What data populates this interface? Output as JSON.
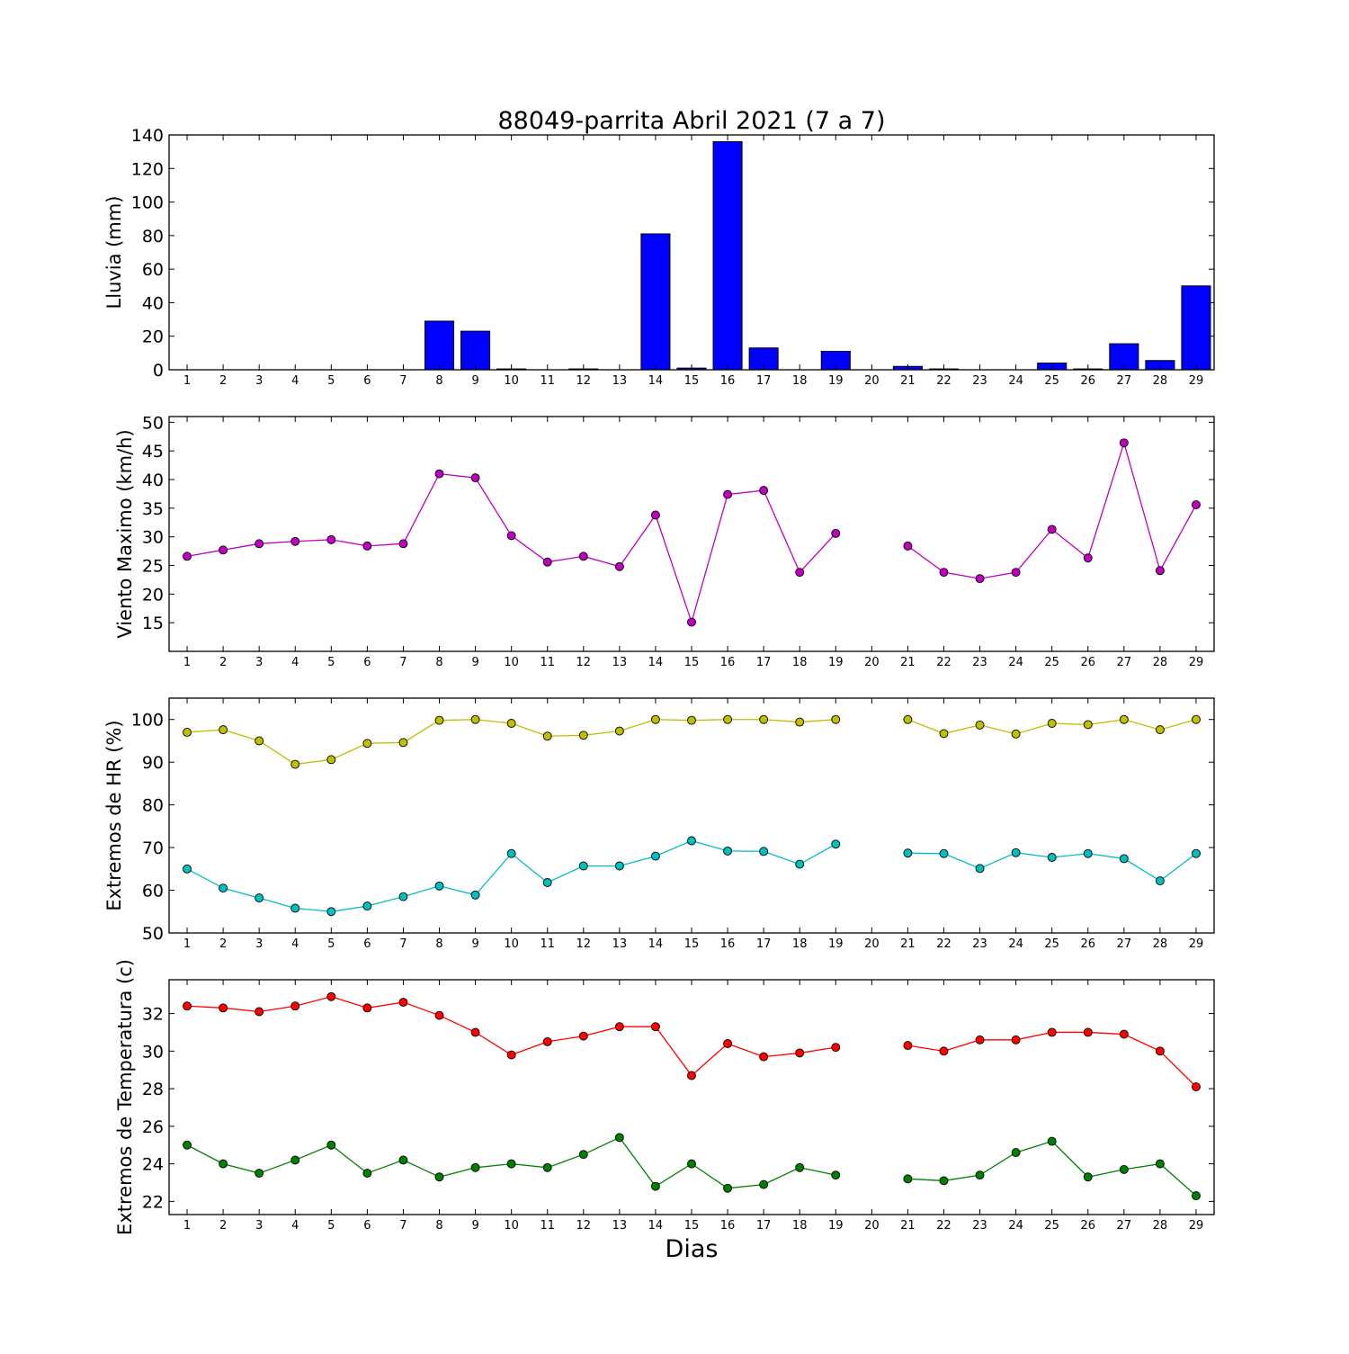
{
  "chart_data": {
    "title": "88049-parrita Abril 2021  (7 a 7)",
    "xlabel": "Dias",
    "x": [
      1,
      2,
      3,
      4,
      5,
      6,
      7,
      8,
      9,
      10,
      11,
      12,
      13,
      14,
      15,
      16,
      17,
      18,
      19,
      20,
      21,
      22,
      23,
      24,
      25,
      26,
      27,
      28,
      29
    ],
    "panels": [
      {
        "id": "lluvia",
        "type": "bar",
        "ylabel": "Lluvia (mm)",
        "ylim": [
          0,
          140
        ],
        "yticks": [
          0,
          20,
          40,
          60,
          80,
          100,
          120,
          140
        ],
        "series": [
          {
            "color": "#0000ff",
            "values": [
              0,
              0,
              0,
              0,
              0,
              0,
              0,
              29,
              23,
              0.5,
              0,
              0.5,
              0,
              81,
              1,
              136,
              13,
              0,
              11,
              0,
              2,
              0.5,
              0,
              0,
              4,
              0.5,
              15.5,
              5.5,
              50
            ]
          }
        ]
      },
      {
        "id": "viento",
        "type": "line",
        "ylabel": "Viento Maximo (km/h)",
        "ylim": [
          10,
          51
        ],
        "yticks": [
          15,
          20,
          25,
          30,
          35,
          40,
          45,
          50
        ],
        "series": [
          {
            "color": "#bf00bf",
            "values": [
              26.6,
              27.7,
              28.8,
              29.2,
              29.5,
              28.4,
              28.8,
              41,
              40.3,
              30.2,
              25.6,
              26.6,
              24.8,
              33.8,
              15.1,
              37.4,
              38.1,
              23.8,
              30.6,
              null,
              28.4,
              23.8,
              22.7,
              23.8,
              31.3,
              26.3,
              46.4,
              24.1,
              35.6
            ]
          }
        ]
      },
      {
        "id": "hr",
        "type": "line",
        "ylabel": "Extremos de HR (%)",
        "ylim": [
          50,
          105
        ],
        "yticks": [
          50,
          60,
          70,
          80,
          90,
          100
        ],
        "series": [
          {
            "color": "#bfbf00",
            "values": [
              97,
              97.6,
              95,
              89.5,
              90.6,
              94.4,
              94.6,
              99.8,
              100,
              99.1,
              96.1,
              96.3,
              97.3,
              100,
              99.8,
              100,
              100,
              99.4,
              100,
              null,
              100,
              96.7,
              98.7,
              96.6,
              99.1,
              98.8,
              100,
              97.6,
              100
            ]
          },
          {
            "color": "#00bfbf",
            "values": [
              65,
              60.5,
              58.2,
              55.8,
              55,
              56.3,
              58.5,
              61,
              58.9,
              68.6,
              61.8,
              65.7,
              65.7,
              68,
              71.6,
              69.2,
              69.1,
              66.1,
              70.8,
              null,
              68.7,
              68.6,
              65.1,
              68.8,
              67.7,
              68.6,
              67.4,
              62.2,
              68.6
            ]
          }
        ]
      },
      {
        "id": "temp",
        "type": "line",
        "ylabel": "Extremos de Temperatura (c)",
        "ylim": [
          21.3,
          33.8
        ],
        "yticks": [
          22,
          24,
          26,
          28,
          30,
          32
        ],
        "series": [
          {
            "color": "#ff0000",
            "values": [
              32.4,
              32.3,
              32.1,
              32.4,
              32.9,
              32.3,
              32.6,
              31.9,
              31,
              29.8,
              30.5,
              30.8,
              31.3,
              31.3,
              28.7,
              30.4,
              29.7,
              29.9,
              30.2,
              null,
              30.3,
              30,
              30.6,
              30.6,
              31,
              31,
              30.9,
              30,
              28.1
            ]
          },
          {
            "color": "#008000",
            "values": [
              25,
              24,
              23.5,
              24.2,
              25,
              23.5,
              24.2,
              23.3,
              23.8,
              24,
              23.8,
              24.5,
              25.4,
              22.8,
              24,
              22.7,
              22.9,
              23.8,
              23.4,
              null,
              23.2,
              23.1,
              23.4,
              24.6,
              25.2,
              23.3,
              23.7,
              24,
              22.3
            ]
          }
        ]
      }
    ]
  }
}
